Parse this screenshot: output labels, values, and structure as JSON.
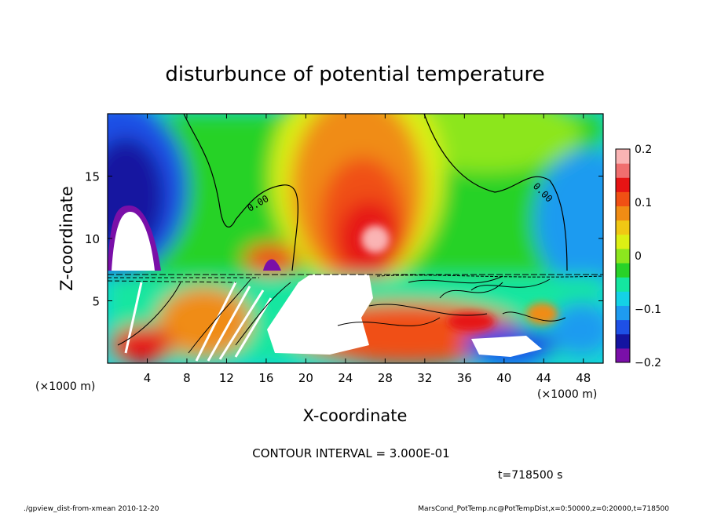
{
  "chart_data": {
    "type": "heatmap",
    "title": "disturbunce of potential temperature",
    "xlabel": "X-coordinate",
    "ylabel": "Z-coordinate",
    "x_unit": "(×1000 m)",
    "y_unit": "(×1000 m)",
    "xlim": [
      0,
      50
    ],
    "ylim": [
      0,
      20
    ],
    "x_ticks": [
      4,
      8,
      12,
      16,
      20,
      24,
      28,
      32,
      36,
      40,
      44,
      48
    ],
    "y_ticks": [
      5,
      10,
      15
    ],
    "colorbar": {
      "range": [
        -0.2,
        0.2
      ],
      "tick_labels": [
        "0.2",
        "0.1",
        "0",
        "−0.1",
        "−0.2"
      ],
      "tick_values": [
        0.2,
        0.1,
        0,
        -0.1,
        -0.2
      ],
      "colors": [
        "#7a0fa8",
        "#1414a0",
        "#1e50e6",
        "#1e9bf0",
        "#14d2e6",
        "#14e6a0",
        "#28d228",
        "#8ce61e",
        "#dcf014",
        "#f0c814",
        "#f08c14",
        "#f05014",
        "#e61414",
        "#f06e6e",
        "#fab4b4"
      ]
    },
    "contour_label": "0.00",
    "contour_interval": "CONTOUR INTERVAL = 3.000E-01",
    "time": "t=718500 s"
  },
  "footer": {
    "left": "./gpview_dist-from-xmean  2010-12-20",
    "right": "MarsCond_PotTemp.nc@PotTempDist,x=0:50000,z=0:20000,t=718500"
  }
}
